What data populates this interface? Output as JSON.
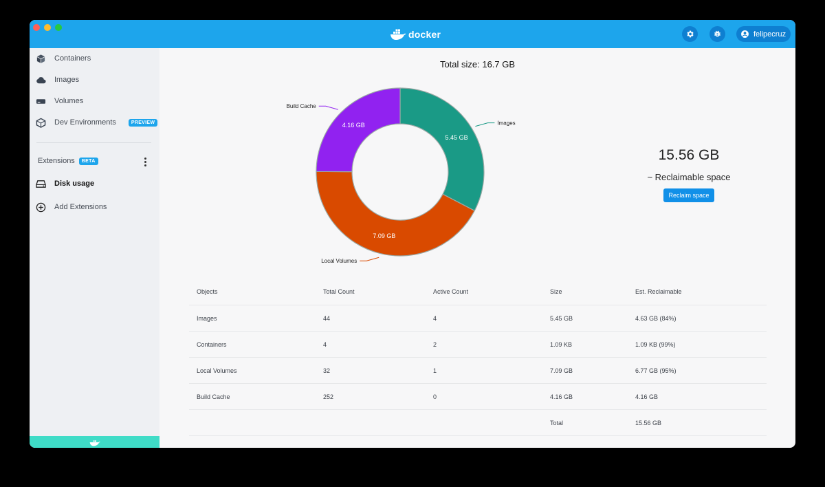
{
  "app": {
    "logo_text": "docker",
    "user": "felipecruz"
  },
  "titlebar": {
    "settings_icon": "gear-icon",
    "bug_icon": "bug-icon",
    "user_icon": "account-circle-icon"
  },
  "sidebar": {
    "items": [
      {
        "label": "Containers",
        "icon": "container-icon"
      },
      {
        "label": "Images",
        "icon": "cloud-icon"
      },
      {
        "label": "Volumes",
        "icon": "volume-drive-icon"
      },
      {
        "label": "Dev Environments",
        "icon": "box-icon",
        "badge": "PREVIEW"
      }
    ],
    "extensions": {
      "label": "Extensions",
      "badge": "BETA"
    },
    "ext_items": [
      {
        "label": "Disk usage",
        "icon": "hard-drive-icon"
      },
      {
        "label": "Add Extensions",
        "icon": "plus-circle-icon"
      }
    ]
  },
  "main": {
    "total_size": "Total size: 16.7 GB",
    "reclaimable_value": "15.56 GB",
    "reclaimable_label": "~ Reclaimable space",
    "reclaim_button": "Reclaim space"
  },
  "chart_data": {
    "type": "pie",
    "donut": true,
    "categories": [
      "Images",
      "Local Volumes",
      "Build Cache"
    ],
    "values": [
      5.45,
      7.09,
      4.16
    ],
    "value_labels": [
      "5.45 GB",
      "7.09 GB",
      "4.16 GB"
    ],
    "colors": [
      "#1a9a86",
      "#d94a00",
      "#9122f0"
    ],
    "separator": "#9aa8a4",
    "title": ""
  },
  "table": {
    "headers": [
      "Objects",
      "Total Count",
      "Active Count",
      "Size",
      "Est. Reclaimable"
    ],
    "rows": [
      [
        "Images",
        "44",
        "4",
        "5.45 GB",
        "4.63 GB (84%)"
      ],
      [
        "Containers",
        "4",
        "2",
        "1.09 KB",
        "1.09 KB (99%)"
      ],
      [
        "Local Volumes",
        "32",
        "1",
        "7.09 GB",
        "6.77 GB (95%)"
      ],
      [
        "Build Cache",
        "252",
        "0",
        "4.16 GB",
        "4.16 GB"
      ],
      [
        "",
        "",
        "",
        "Total",
        "15.56 GB"
      ]
    ]
  }
}
